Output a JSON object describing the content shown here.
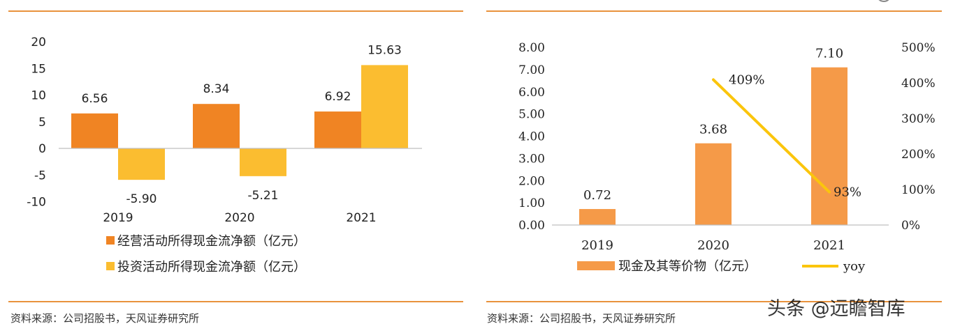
{
  "colors": {
    "rule": "#e9923c",
    "operating": "#f08423",
    "investing": "#fbbd30",
    "cash": "#f59a48",
    "yoy": "#fbc50c",
    "axis": "#bfbfbf"
  },
  "left_panel": {
    "source": "资料来源：公司招股书，天风证券研究所"
  },
  "right_panel": {
    "source": "资料来源：公司招股书，天风证券研究所"
  },
  "watermark": "头条 @远瞻智库",
  "chart_data": [
    {
      "type": "bar",
      "categories": [
        "2019",
        "2020",
        "2021"
      ],
      "series": [
        {
          "name": "经营活动所得现金流净额（亿元）",
          "values": [
            6.56,
            8.34,
            6.92
          ],
          "labels": [
            "6.56",
            "8.34",
            "6.92"
          ],
          "color": "#f08423"
        },
        {
          "name": "投资活动所得现金流净额（亿元）",
          "values": [
            -5.9,
            -5.21,
            15.63
          ],
          "labels": [
            "-5.90",
            "-5.21",
            "15.63"
          ],
          "color": "#fbbd30"
        }
      ],
      "ylim": [
        -10,
        20
      ],
      "yticks": [
        "20",
        "15",
        "10",
        "5",
        "0",
        "-5",
        "-10"
      ],
      "ytick_values": [
        20,
        15,
        10,
        5,
        0,
        -5,
        -10
      ],
      "grid": false,
      "legend_position": "bottom"
    },
    {
      "type": "bar",
      "categories": [
        "2019",
        "2020",
        "2021"
      ],
      "series": [
        {
          "name": "现金及其等价物（亿元）",
          "values": [
            0.72,
            3.68,
            7.1
          ],
          "labels": [
            "0.72",
            "3.68",
            "7.10"
          ],
          "color": "#f59a48",
          "axis": "left"
        },
        {
          "name": "yoy",
          "type": "line",
          "x": [
            "2020",
            "2021"
          ],
          "values": [
            409,
            93
          ],
          "labels": [
            "409%",
            "93%"
          ],
          "color": "#fbc50c",
          "axis": "right"
        }
      ],
      "ylim": [
        0,
        8
      ],
      "yticks": [
        "8.00",
        "7.00",
        "6.00",
        "5.00",
        "4.00",
        "3.00",
        "2.00",
        "1.00",
        "0.00"
      ],
      "ytick_values": [
        8,
        7,
        6,
        5,
        4,
        3,
        2,
        1,
        0
      ],
      "y2lim": [
        0,
        500
      ],
      "y2ticks": [
        "500%",
        "400%",
        "300%",
        "200%",
        "100%",
        "0%"
      ],
      "y2tick_values": [
        500,
        400,
        300,
        200,
        100,
        0
      ],
      "grid": false,
      "legend_position": "bottom"
    }
  ]
}
